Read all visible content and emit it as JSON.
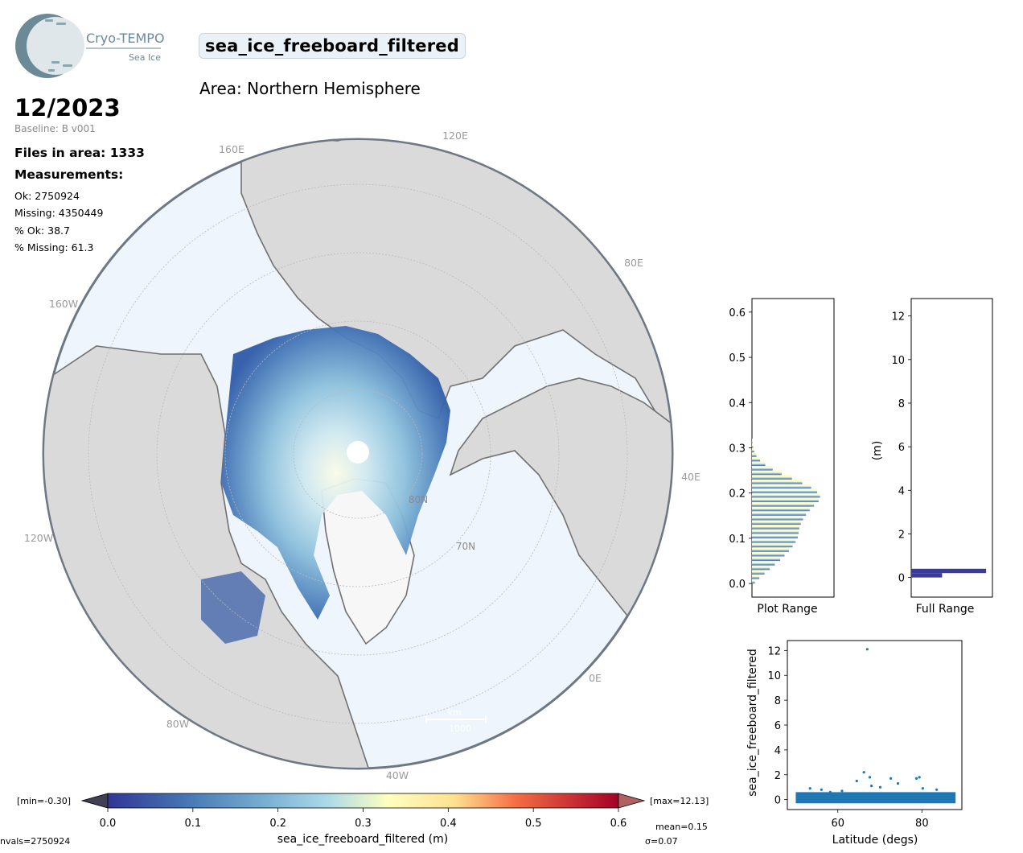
{
  "header": {
    "logo_title": "Cryo-TEMPO",
    "logo_subtitle": "Sea Ice",
    "parameter": "sea_ice_freeboard_filtered",
    "area": "Area: Northern Hemisphere",
    "date": "12/2023",
    "baseline": "Baseline: B v001"
  },
  "stats": {
    "files": "Files in area: 1333",
    "measurements_title": "Measurements:",
    "ok": "Ok: 2750924",
    "missing": "Missing: 4350449",
    "pct_ok": "% Ok: 38.7",
    "pct_missing": "% Missing: 61.3"
  },
  "map": {
    "projection": "north-polar-stereographic",
    "lon_labels": [
      "120E",
      "160E",
      "80E",
      "160W",
      "40E",
      "120W",
      "0E",
      "80W",
      "40W"
    ],
    "lat_labels": [
      "80N",
      "70N"
    ],
    "scalebar_unit": "km",
    "scalebar_value": "1000",
    "colors": {
      "ocean": "#eef5fd",
      "land": "#d9d9d9",
      "coast": "#707070",
      "data_low": "#313695",
      "data_mid": "#abd9e9",
      "data_high": "#ffffbf"
    }
  },
  "colorbar": {
    "label": "sea_ice_freeboard_filtered (m)",
    "min_label": "[min=-0.30]",
    "max_label": "[max=12.13]",
    "ticks": [
      "0.0",
      "0.1",
      "0.2",
      "0.3",
      "0.4",
      "0.5",
      "0.6"
    ],
    "range": [
      0.0,
      0.6
    ],
    "colormap": "RdYlBu_r",
    "nvals": "nvals=2750924",
    "mean": "mean=0.15",
    "sigma": "σ=0.07"
  },
  "chart_data": [
    {
      "type": "bar",
      "orientation": "horizontal",
      "xlabel": "Plot Range",
      "ylim": [
        -0.03,
        0.63
      ],
      "yticks": [
        "0.0",
        "0.1",
        "0.2",
        "0.3",
        "0.4",
        "0.5",
        "0.6"
      ],
      "bins": [
        0.0,
        0.01,
        0.02,
        0.03,
        0.04,
        0.05,
        0.06,
        0.07,
        0.08,
        0.09,
        0.1,
        0.11,
        0.12,
        0.13,
        0.14,
        0.15,
        0.16,
        0.17,
        0.18,
        0.19,
        0.2,
        0.21,
        0.22,
        0.23,
        0.24,
        0.25,
        0.26,
        0.27,
        0.28,
        0.29,
        0.3,
        0.31
      ],
      "values": [
        0.04,
        0.1,
        0.17,
        0.24,
        0.31,
        0.38,
        0.44,
        0.5,
        0.55,
        0.59,
        0.62,
        0.63,
        0.64,
        0.66,
        0.69,
        0.73,
        0.78,
        0.84,
        0.9,
        0.92,
        0.88,
        0.8,
        0.68,
        0.54,
        0.4,
        0.28,
        0.18,
        0.11,
        0.06,
        0.03,
        0.015,
        0.005
      ]
    },
    {
      "type": "bar",
      "orientation": "horizontal",
      "xlabel": "Full Range",
      "ylabel": "(m)",
      "ylim": [
        -0.9,
        12.8
      ],
      "yticks": [
        "0",
        "2",
        "4",
        "6",
        "8",
        "10",
        "12"
      ],
      "bins": [
        0.0,
        0.2
      ],
      "values": [
        0.4,
        0.97
      ]
    },
    {
      "type": "scatter",
      "xlabel": "Latitude (degs)",
      "ylabel": "sea_ice_freeboard_filtered",
      "xlim": [
        48,
        89.5
      ],
      "ylim": [
        -0.8,
        12.8
      ],
      "xticks": [
        "60",
        "80"
      ],
      "yticks": [
        "0",
        "2",
        "4",
        "6",
        "8",
        "10",
        "12"
      ],
      "color": "#1f77b4",
      "points": [
        [
          67,
          12.1
        ],
        [
          66.2,
          2.2
        ],
        [
          67.6,
          1.8
        ],
        [
          64.5,
          1.5
        ],
        [
          72.6,
          1.7
        ],
        [
          78.7,
          1.7
        ],
        [
          79.4,
          1.8
        ],
        [
          74.3,
          1.3
        ],
        [
          53.4,
          0.9
        ],
        [
          56.1,
          0.8
        ],
        [
          61.0,
          0.7
        ],
        [
          70.1,
          1.0
        ],
        [
          68.0,
          1.1
        ],
        [
          80.2,
          0.9
        ],
        [
          83.5,
          0.8
        ],
        [
          58.2,
          0.6
        ]
      ],
      "band": {
        "x_from": 50,
        "x_to": 88,
        "y_from": -0.3,
        "y_to": 0.6
      }
    }
  ]
}
